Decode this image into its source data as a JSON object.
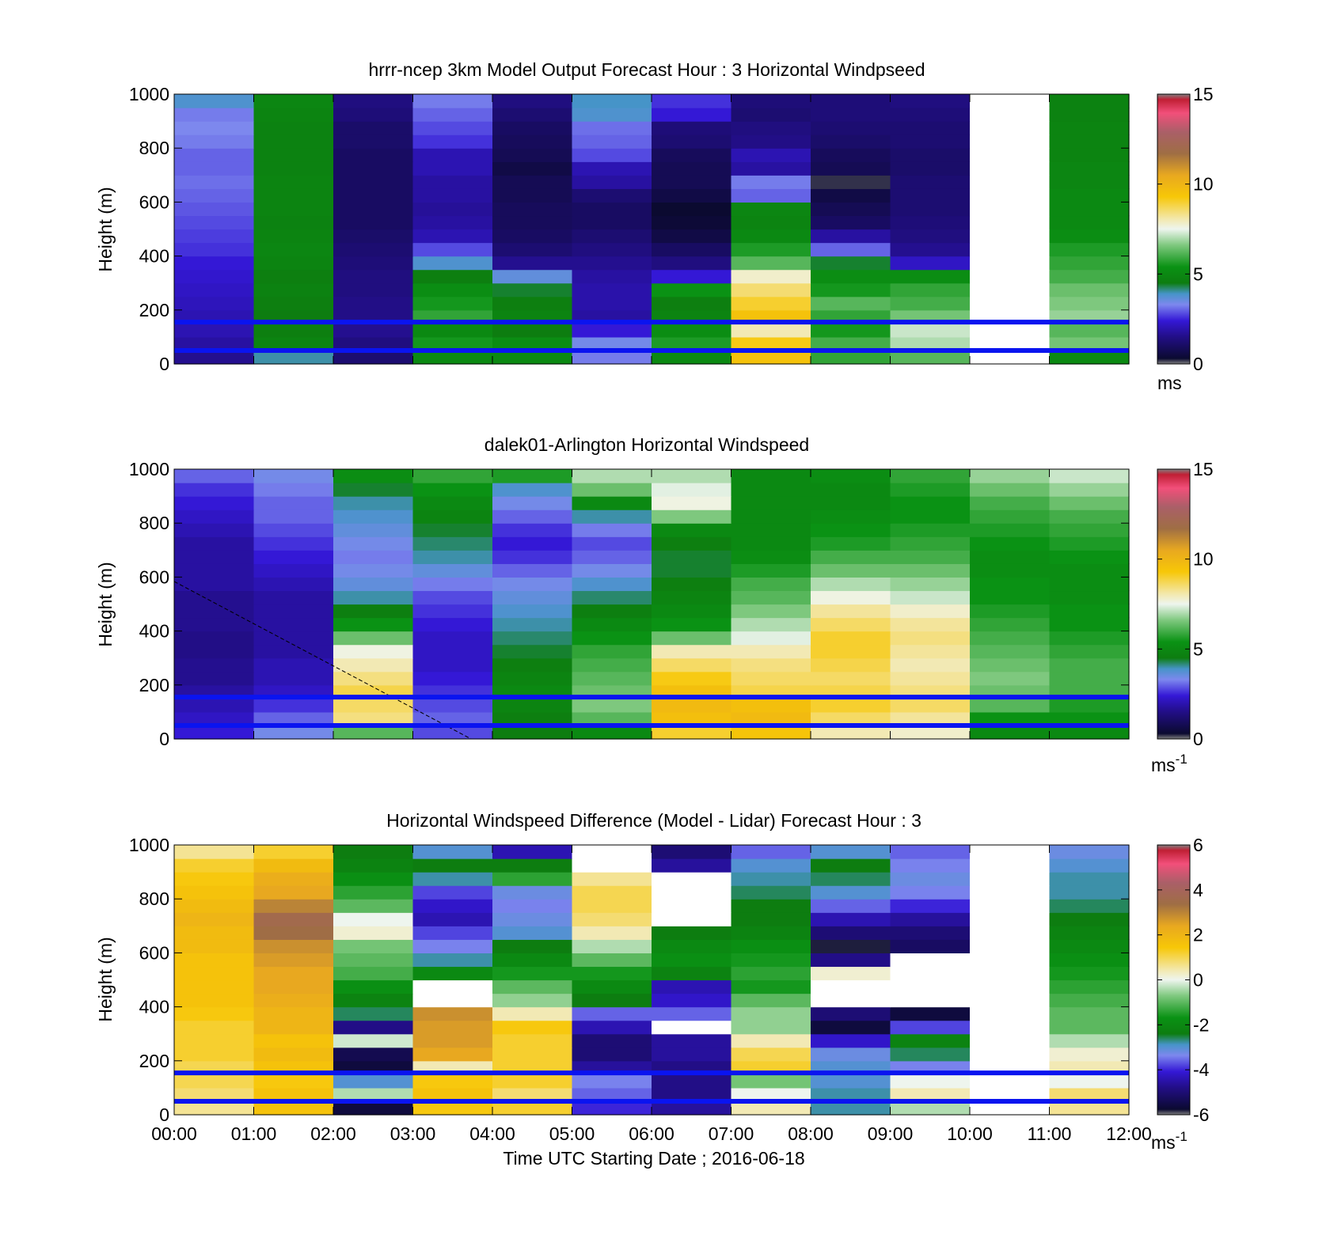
{
  "panels": [
    {
      "title": "hrrr-ncep 3km Model Output   Forecast Hour : 3 Horizontal Windpseed",
      "ylabel": "Height (m)",
      "ylim": [
        0,
        1000
      ],
      "yticks": [
        "0",
        "200",
        "400",
        "600",
        "800",
        "1000"
      ],
      "colorbar": {
        "min": 0,
        "max": 15,
        "ticks": [
          "0",
          "5",
          "10",
          "15"
        ],
        "unit": "ms",
        "unit_sup": ""
      },
      "reference_lines_m": [
        50,
        155
      ]
    },
    {
      "title": "dalek01-Arlington  Horizontal Windspeed",
      "ylabel": "Height (m)",
      "ylim": [
        0,
        1000
      ],
      "yticks": [
        "0",
        "200",
        "400",
        "600",
        "800",
        "1000"
      ],
      "colorbar": {
        "min": 0,
        "max": 15,
        "ticks": [
          "0",
          "5",
          "10",
          "15"
        ],
        "unit": "ms",
        "unit_sup": "-1"
      },
      "reference_lines_m": [
        50,
        155
      ]
    },
    {
      "title": "Horizontal Windspeed Difference (Model - Lidar) Forecast Hour : 3",
      "ylabel": "Height (m)",
      "ylim": [
        0,
        1000
      ],
      "yticks": [
        "0",
        "200",
        "400",
        "600",
        "800",
        "1000"
      ],
      "colorbar": {
        "min": -6,
        "max": 6,
        "ticks": [
          "-6",
          "-4",
          "-2",
          "0",
          "2",
          "4",
          "6"
        ],
        "unit": "ms",
        "unit_sup": "-1"
      },
      "reference_lines_m": [
        50,
        155
      ]
    }
  ],
  "xaxis": {
    "label": "Time UTC  Starting Date ; 2016-06-18",
    "ticks": [
      "00:00",
      "01:00",
      "02:00",
      "03:00",
      "04:00",
      "05:00",
      "06:00",
      "07:00",
      "08:00",
      "09:00",
      "10:00",
      "11:00",
      "12:00"
    ]
  },
  "chart_data": [
    {
      "type": "heatmap",
      "title": "hrrr-ncep 3km Model Output   Forecast Hour : 3 Horizontal Windpseed",
      "ylabel": "Height (m)",
      "xlabel": "",
      "x_hours": [
        0,
        12
      ],
      "ylim": [
        0,
        1000
      ],
      "colorbar_range": [
        0,
        15
      ],
      "unit": "ms",
      "time_bins": [
        "00:00",
        "01:00",
        "02:00",
        "03:00",
        "04:00",
        "05:00",
        "06:00",
        "07:00",
        "08:00",
        "09:00",
        "10:00",
        "11:00"
      ],
      "height_levels_m": [
        25,
        75,
        125,
        175,
        225,
        275,
        325,
        375,
        425,
        475,
        525,
        575,
        625,
        675,
        725,
        775,
        825,
        875,
        925,
        975
      ],
      "values_ms": [
        [
          1.6,
          4.0,
          1.2,
          5.0,
          5.0,
          3.2,
          5.0,
          9.5,
          5.8,
          6.2,
          null,
          5.0
        ],
        [
          1.8,
          4.8,
          1.4,
          5.5,
          5.2,
          3.4,
          5.6,
          9.2,
          6.0,
          7.0,
          null,
          6.5
        ],
        [
          2.0,
          4.6,
          1.6,
          5.0,
          4.5,
          2.4,
          5.2,
          8.0,
          5.5,
          7.2,
          null,
          6.2
        ],
        [
          2.0,
          4.5,
          1.5,
          5.8,
          4.8,
          1.8,
          4.8,
          9.5,
          5.8,
          6.5,
          null,
          6.8
        ],
        [
          2.1,
          4.6,
          1.5,
          5.5,
          4.6,
          1.9,
          4.6,
          9.0,
          6.2,
          6.0,
          null,
          6.6
        ],
        [
          2.2,
          4.7,
          1.4,
          5.2,
          4.4,
          1.9,
          5.4,
          8.5,
          5.5,
          5.8,
          null,
          6.4
        ],
        [
          2.3,
          4.6,
          1.4,
          4.6,
          3.6,
          1.8,
          2.4,
          7.8,
          5.2,
          5.2,
          null,
          6.0
        ],
        [
          2.4,
          4.8,
          1.3,
          3.8,
          1.6,
          1.6,
          1.4,
          6.2,
          4.4,
          2.2,
          null,
          5.8
        ],
        [
          2.6,
          4.9,
          1.2,
          2.8,
          1.2,
          1.4,
          1.0,
          5.6,
          3.0,
          1.6,
          null,
          5.6
        ],
        [
          2.7,
          4.8,
          1.1,
          2.0,
          1.0,
          1.2,
          0.6,
          5.0,
          1.8,
          1.4,
          null,
          5.2
        ],
        [
          2.8,
          4.7,
          1.0,
          1.8,
          0.9,
          1.0,
          0.4,
          4.8,
          1.0,
          1.3,
          null,
          5.0
        ],
        [
          2.9,
          4.8,
          1.0,
          1.7,
          0.9,
          1.0,
          0.3,
          4.9,
          0.8,
          1.2,
          null,
          5.0
        ],
        [
          3.0,
          4.8,
          1.0,
          1.8,
          0.8,
          1.2,
          0.6,
          3.0,
          0.6,
          1.2,
          null,
          5.0
        ],
        [
          3.1,
          4.8,
          1.0,
          1.8,
          0.8,
          1.8,
          0.8,
          3.2,
          0.2,
          1.2,
          null,
          4.9
        ],
        [
          3.0,
          4.7,
          1.0,
          2.0,
          0.6,
          2.0,
          0.8,
          1.8,
          0.8,
          1.1,
          null,
          4.9
        ],
        [
          3.0,
          4.7,
          1.0,
          2.0,
          0.8,
          2.8,
          0.9,
          2.0,
          0.9,
          1.1,
          null,
          4.8
        ],
        [
          3.2,
          4.7,
          1.1,
          2.6,
          0.9,
          3.0,
          1.2,
          1.5,
          1.1,
          1.2,
          null,
          4.8
        ],
        [
          3.3,
          4.7,
          1.1,
          2.8,
          1.0,
          3.1,
          1.3,
          1.4,
          1.2,
          1.2,
          null,
          4.8
        ],
        [
          3.2,
          4.8,
          1.3,
          3.0,
          1.2,
          3.8,
          2.4,
          1.2,
          1.3,
          1.3,
          null,
          4.7
        ],
        [
          3.8,
          4.9,
          1.4,
          3.2,
          1.4,
          3.9,
          2.6,
          1.3,
          1.3,
          1.4,
          null,
          4.7
        ]
      ]
    },
    {
      "type": "heatmap",
      "title": "dalek01-Arlington  Horizontal Windspeed",
      "ylabel": "Height (m)",
      "xlabel": "",
      "x_hours": [
        0,
        12
      ],
      "ylim": [
        0,
        1000
      ],
      "colorbar_range": [
        0,
        15
      ],
      "unit": "ms-1",
      "time_bins": [
        "00:00",
        "01:00",
        "02:00",
        "03:00",
        "04:00",
        "05:00",
        "06:00",
        "07:00",
        "08:00",
        "09:00",
        "10:00",
        "11:00"
      ],
      "height_levels_m": [
        25,
        75,
        125,
        175,
        225,
        275,
        325,
        375,
        425,
        475,
        525,
        575,
        625,
        675,
        725,
        775,
        825,
        875,
        925,
        975
      ],
      "values_ms": [
        [
          2.4,
          3.4,
          6.2,
          2.8,
          4.5,
          5.0,
          9.0,
          9.4,
          8.0,
          7.8,
          5.0,
          5.0
        ],
        [
          2.2,
          3.0,
          8.4,
          3.0,
          4.6,
          6.2,
          9.6,
          9.8,
          8.6,
          8.2,
          5.4,
          5.4
        ],
        [
          2.0,
          2.6,
          8.6,
          2.8,
          4.8,
          6.6,
          9.8,
          9.6,
          9.0,
          8.6,
          6.2,
          5.6
        ],
        [
          1.8,
          2.2,
          8.8,
          2.6,
          5.0,
          6.4,
          9.6,
          8.8,
          8.8,
          8.4,
          6.4,
          6.0
        ],
        [
          1.6,
          2.0,
          8.4,
          2.4,
          4.8,
          6.2,
          9.2,
          8.6,
          8.6,
          8.2,
          6.6,
          6.0
        ],
        [
          1.6,
          2.0,
          8.0,
          2.2,
          4.6,
          6.0,
          8.6,
          8.4,
          8.8,
          8.0,
          6.4,
          6.0
        ],
        [
          1.5,
          1.8,
          7.6,
          2.2,
          4.4,
          5.8,
          8.0,
          8.0,
          9.0,
          8.2,
          6.2,
          5.8
        ],
        [
          1.5,
          1.8,
          6.4,
          2.2,
          4.2,
          5.4,
          6.4,
          7.4,
          9.0,
          8.4,
          6.0,
          5.6
        ],
        [
          1.6,
          1.8,
          5.4,
          2.4,
          4.0,
          5.0,
          5.4,
          7.0,
          8.6,
          8.2,
          5.8,
          5.4
        ],
        [
          1.6,
          1.8,
          4.6,
          2.6,
          3.8,
          4.6,
          5.0,
          6.6,
          8.2,
          7.8,
          5.6,
          5.4
        ],
        [
          1.6,
          1.8,
          4.0,
          2.8,
          3.6,
          4.2,
          4.8,
          6.2,
          7.6,
          7.2,
          5.4,
          5.2
        ],
        [
          1.8,
          2.0,
          3.6,
          3.2,
          3.4,
          3.8,
          4.6,
          6.0,
          7.0,
          6.8,
          5.4,
          5.2
        ],
        [
          1.8,
          2.2,
          3.4,
          3.6,
          3.0,
          3.4,
          4.4,
          5.6,
          6.4,
          6.4,
          5.2,
          5.2
        ],
        [
          1.8,
          2.4,
          3.2,
          4.0,
          2.6,
          3.0,
          4.4,
          5.2,
          6.0,
          6.0,
          5.2,
          5.4
        ],
        [
          1.8,
          2.6,
          3.4,
          4.2,
          2.4,
          2.8,
          4.6,
          5.0,
          5.6,
          5.8,
          5.4,
          5.6
        ],
        [
          2.0,
          2.8,
          3.6,
          4.4,
          2.6,
          3.2,
          5.0,
          5.0,
          5.4,
          5.6,
          5.6,
          5.8
        ],
        [
          2.2,
          3.0,
          3.8,
          4.8,
          3.0,
          4.0,
          6.6,
          5.0,
          5.2,
          5.4,
          5.8,
          6.0
        ],
        [
          2.4,
          3.0,
          4.0,
          5.0,
          3.4,
          5.0,
          7.6,
          5.0,
          5.0,
          5.4,
          6.0,
          6.4
        ],
        [
          2.6,
          3.2,
          4.4,
          5.4,
          3.8,
          6.4,
          7.4,
          5.0,
          5.0,
          5.6,
          6.4,
          6.8
        ],
        [
          3.0,
          3.4,
          5.2,
          5.8,
          5.6,
          7.0,
          7.0,
          5.0,
          5.2,
          5.8,
          6.8,
          7.2
        ]
      ]
    },
    {
      "type": "heatmap",
      "title": "Horizontal Windspeed Difference (Model - Lidar) Forecast Hour : 3",
      "ylabel": "Height (m)",
      "xlabel": "Time UTC  Starting Date ; 2016-06-18",
      "x_hours": [
        0,
        12
      ],
      "ylim": [
        0,
        1000
      ],
      "colorbar_range": [
        -6,
        6
      ],
      "unit": "ms-1",
      "time_bins": [
        "00:00",
        "01:00",
        "02:00",
        "03:00",
        "04:00",
        "05:00",
        "06:00",
        "07:00",
        "08:00",
        "09:00",
        "10:00",
        "11:00"
      ],
      "height_levels_m": [
        25,
        75,
        125,
        175,
        225,
        275,
        325,
        375,
        425,
        475,
        525,
        575,
        625,
        675,
        725,
        775,
        825,
        875,
        925,
        975
      ],
      "values_ms": [
        [
          0.6,
          1.6,
          -5.6,
          1.4,
          1.2,
          -4.0,
          -4.6,
          0.4,
          -2.8,
          -0.4,
          null,
          0.6
        ],
        [
          0.8,
          1.6,
          -0.4,
          1.6,
          0.8,
          -3.6,
          -4.8,
          0.0,
          -2.8,
          0.4,
          null,
          0.8
        ],
        [
          1.0,
          1.4,
          -3.0,
          1.4,
          1.2,
          -3.4,
          -4.8,
          -0.8,
          -3.0,
          0.0,
          null,
          0.0
        ],
        [
          1.0,
          1.6,
          -5.6,
          0.4,
          1.2,
          -4.6,
          -4.8,
          1.2,
          -3.0,
          -3.4,
          null,
          0.4
        ],
        [
          1.2,
          1.8,
          -5.4,
          2.4,
          1.2,
          -5.0,
          -4.6,
          1.0,
          -3.2,
          -2.6,
          null,
          0.2
        ],
        [
          1.2,
          1.6,
          -0.2,
          2.6,
          1.2,
          -5.0,
          -4.6,
          0.4,
          -4.2,
          -2.2,
          null,
          -0.4
        ],
        [
          1.2,
          2.0,
          -4.8,
          2.6,
          1.4,
          -4.4,
          null,
          -0.6,
          -5.6,
          -3.8,
          null,
          -1.0
        ],
        [
          1.4,
          2.0,
          -2.6,
          2.8,
          0.4,
          -3.6,
          -3.6,
          -0.6,
          -5.0,
          -5.6,
          null,
          -1.0
        ],
        [
          1.6,
          2.2,
          -2.2,
          null,
          -0.6,
          -2.4,
          -4.2,
          -1.0,
          null,
          null,
          null,
          -1.2
        ],
        [
          1.6,
          2.4,
          -1.8,
          null,
          -1.0,
          -2.0,
          -4.4,
          -1.6,
          null,
          null,
          null,
          -1.4
        ],
        [
          1.6,
          2.4,
          -1.2,
          -2.0,
          -1.6,
          -1.6,
          -2.2,
          -1.4,
          0.2,
          null,
          null,
          -1.6
        ],
        [
          1.6,
          2.6,
          -1.0,
          -2.8,
          -2.0,
          -1.0,
          -1.8,
          -1.6,
          -4.8,
          null,
          null,
          -1.8
        ],
        [
          1.8,
          2.8,
          -0.8,
          -3.4,
          -2.4,
          -0.4,
          -2.0,
          -1.8,
          -5.8,
          -5.2,
          null,
          -2.0
        ],
        [
          1.8,
          3.4,
          0.2,
          -3.8,
          -3.0,
          0.4,
          -2.4,
          -2.2,
          -5.0,
          -5.0,
          null,
          -2.2
        ],
        [
          2.0,
          3.6,
          0.0,
          -4.4,
          -3.2,
          0.8,
          null,
          -2.4,
          -4.4,
          -4.6,
          null,
          -2.4
        ],
        [
          1.8,
          3.0,
          -1.0,
          -4.2,
          -3.4,
          1.0,
          null,
          -2.4,
          -3.6,
          -4.0,
          null,
          -2.6
        ],
        [
          1.6,
          2.4,
          -1.4,
          -3.8,
          -3.2,
          1.0,
          null,
          -2.6,
          -3.0,
          -3.4,
          null,
          -2.8
        ],
        [
          1.4,
          2.2,
          -1.8,
          -2.8,
          -1.4,
          0.6,
          null,
          -2.8,
          -2.6,
          -3.2,
          null,
          -2.8
        ],
        [
          1.2,
          1.8,
          -2.2,
          -2.4,
          -2.4,
          null,
          -4.6,
          -3.0,
          -2.4,
          -3.4,
          null,
          -3.0
        ],
        [
          0.6,
          1.2,
          -2.4,
          -3.0,
          -4.4,
          null,
          -5.0,
          -3.6,
          -3.0,
          -3.6,
          null,
          -3.2
        ]
      ]
    }
  ]
}
